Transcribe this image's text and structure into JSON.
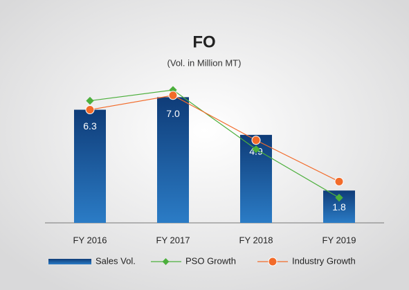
{
  "chart_data": {
    "type": "bar",
    "title": "FO",
    "subtitle": "(Vol. in Million MT)",
    "categories": [
      "FY 2016",
      "FY 2017",
      "FY 2018",
      "FY 2019"
    ],
    "series": [
      {
        "name": "Sales Vol.",
        "type": "bar",
        "color": "#1a5a9e",
        "values": [
          6.3,
          7.0,
          4.9,
          1.8
        ],
        "value_labels": [
          "6.3",
          "7.0",
          "4.9",
          "1.8"
        ]
      },
      {
        "name": "PSO Growth",
        "type": "line",
        "marker": "diamond",
        "color": "#4caf3c",
        "values": [
          6.8,
          7.4,
          4.1,
          1.4
        ]
      },
      {
        "name": "Industry Growth",
        "type": "line",
        "marker": "circle",
        "color": "#f26b2a",
        "values": [
          6.3,
          7.1,
          4.6,
          2.3
        ]
      }
    ]
  }
}
